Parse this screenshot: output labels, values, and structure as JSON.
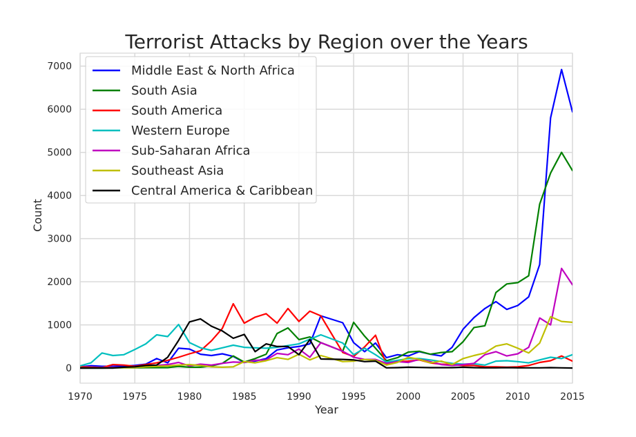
{
  "chart_data": {
    "type": "line",
    "title": "Terrorist Attacks by Region over the Years",
    "xlabel": "Year",
    "ylabel": "Count",
    "xlim": [
      1970,
      2015
    ],
    "ylim": [
      -350,
      7300
    ],
    "xticks": [
      1970,
      1975,
      1980,
      1985,
      1990,
      1995,
      2000,
      2005,
      2010,
      2015
    ],
    "yticks": [
      0,
      1000,
      2000,
      3000,
      4000,
      5000,
      6000,
      7000
    ],
    "grid": true,
    "legend_position": "upper-left",
    "x": [
      1970,
      1971,
      1972,
      1973,
      1974,
      1975,
      1976,
      1977,
      1978,
      1979,
      1980,
      1981,
      1982,
      1983,
      1984,
      1985,
      1986,
      1987,
      1988,
      1989,
      1990,
      1991,
      1992,
      1994,
      1995,
      1996,
      1997,
      1998,
      1999,
      2000,
      2001,
      2002,
      2003,
      2004,
      2005,
      2006,
      2007,
      2008,
      2009,
      2010,
      2011,
      2012,
      2013,
      2014,
      2015
    ],
    "series": [
      {
        "name": "Middle East & North Africa",
        "color": "#0000ff",
        "values": [
          28,
          55,
          40,
          40,
          45,
          60,
          90,
          220,
          120,
          460,
          440,
          320,
          290,
          330,
          270,
          130,
          160,
          220,
          420,
          470,
          500,
          560,
          1210,
          1050,
          590,
          380,
          580,
          240,
          310,
          280,
          380,
          320,
          280,
          480,
          900,
          1170,
          1380,
          1540,
          1360,
          1450,
          1650,
          2400,
          5800,
          6920,
          5940
        ]
      },
      {
        "name": "South Asia",
        "color": "#008000",
        "values": [
          0,
          0,
          0,
          5,
          10,
          5,
          10,
          10,
          10,
          40,
          20,
          20,
          50,
          110,
          280,
          140,
          220,
          320,
          800,
          930,
          660,
          720,
          590,
          390,
          1060,
          740,
          460,
          170,
          240,
          370,
          390,
          320,
          360,
          380,
          610,
          940,
          980,
          1750,
          1950,
          1980,
          2140,
          3800,
          4520,
          5000,
          4580
        ]
      },
      {
        "name": "South America",
        "color": "#ff0000",
        "values": [
          30,
          20,
          10,
          80,
          70,
          40,
          80,
          120,
          180,
          250,
          330,
          400,
          630,
          920,
          1490,
          1040,
          1180,
          1260,
          1040,
          1380,
          1080,
          1320,
          1210,
          360,
          270,
          490,
          760,
          80,
          150,
          160,
          190,
          120,
          90,
          80,
          60,
          60,
          30,
          30,
          20,
          30,
          60,
          130,
          170,
          280,
          160
        ]
      },
      {
        "name": "Western Europe",
        "color": "#00bfbf",
        "values": [
          50,
          120,
          350,
          290,
          310,
          430,
          560,
          770,
          730,
          1010,
          590,
          470,
          410,
          470,
          530,
          480,
          470,
          460,
          480,
          520,
          560,
          670,
          770,
          580,
          310,
          460,
          310,
          140,
          180,
          220,
          220,
          190,
          150,
          110,
          90,
          100,
          70,
          160,
          170,
          150,
          120,
          190,
          250,
          220,
          310
        ]
      },
      {
        "name": "Sub-Saharan Africa",
        "color": "#bf00bf",
        "values": [
          0,
          5,
          10,
          15,
          15,
          20,
          40,
          60,
          80,
          130,
          50,
          90,
          70,
          110,
          140,
          130,
          180,
          190,
          340,
          310,
          440,
          250,
          590,
          390,
          250,
          200,
          200,
          110,
          150,
          130,
          200,
          150,
          80,
          60,
          80,
          110,
          310,
          380,
          280,
          330,
          480,
          1160,
          1000,
          2310,
          1930
        ]
      },
      {
        "name": "Southeast Asia",
        "color": "#bfbf00",
        "values": [
          5,
          5,
          5,
          5,
          10,
          10,
          30,
          40,
          50,
          70,
          80,
          60,
          30,
          20,
          30,
          150,
          120,
          170,
          240,
          200,
          320,
          190,
          290,
          150,
          160,
          200,
          180,
          70,
          130,
          250,
          200,
          120,
          160,
          80,
          220,
          290,
          350,
          510,
          560,
          460,
          350,
          580,
          1190,
          1080,
          1060
        ]
      },
      {
        "name": "Central America & Caribbean",
        "color": "#000000",
        "values": [
          0,
          0,
          0,
          0,
          20,
          30,
          60,
          70,
          250,
          640,
          1070,
          1140,
          970,
          860,
          690,
          780,
          380,
          560,
          500,
          500,
          310,
          660,
          210,
          200,
          190,
          150,
          160,
          5,
          10,
          20,
          15,
          10,
          10,
          10,
          20,
          10,
          5,
          5,
          10,
          5,
          5,
          5,
          10,
          5,
          0
        ]
      }
    ]
  }
}
